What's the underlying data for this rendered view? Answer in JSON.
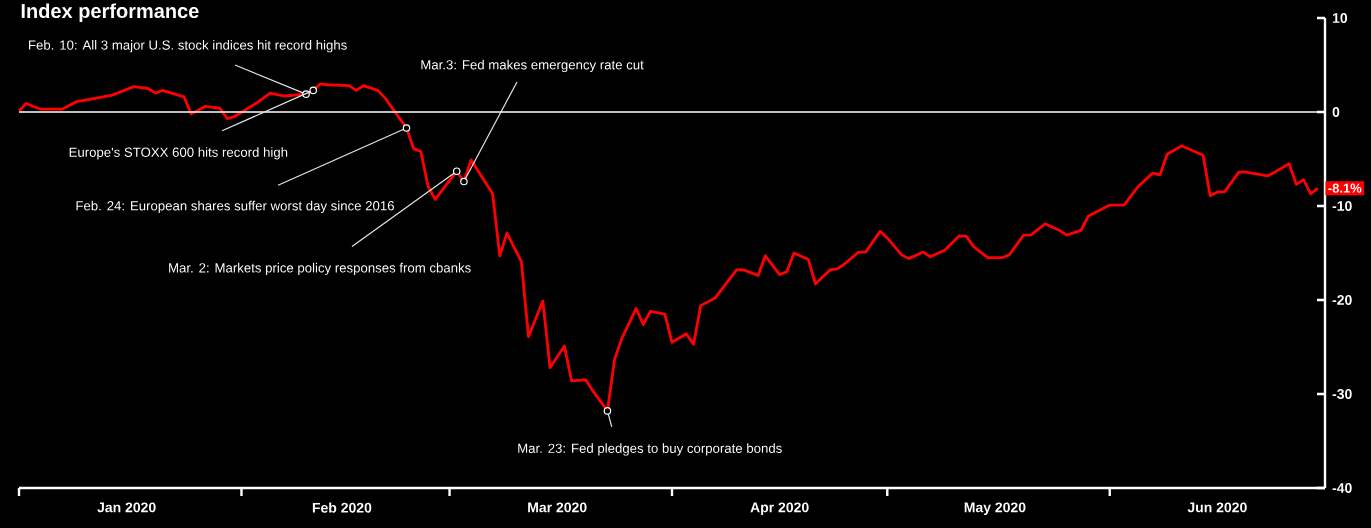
{
  "chart_data": {
    "type": "line",
    "title": "Index performance",
    "x": [
      "2020-01-01",
      "2020-01-02",
      "2020-01-04",
      "2020-01-07",
      "2020-01-09",
      "2020-01-12",
      "2020-01-14",
      "2020-01-17",
      "2020-01-19",
      "2020-01-20",
      "2020-01-21",
      "2020-01-24",
      "2020-01-25",
      "2020-01-27",
      "2020-01-29",
      "2020-01-30",
      "2020-01-31",
      "2020-02-03",
      "2020-02-05",
      "2020-02-07",
      "2020-02-10",
      "2020-02-11",
      "2020-02-12",
      "2020-02-13",
      "2020-02-16",
      "2020-02-17",
      "2020-02-18",
      "2020-02-20",
      "2020-02-21",
      "2020-02-24",
      "2020-02-25",
      "2020-02-26",
      "2020-02-27",
      "2020-02-28",
      "2020-03-02",
      "2020-03-03",
      "2020-03-04",
      "2020-03-07",
      "2020-03-08",
      "2020-03-09",
      "2020-03-11",
      "2020-03-12",
      "2020-03-14",
      "2020-03-15",
      "2020-03-17",
      "2020-03-18",
      "2020-03-20",
      "2020-03-21",
      "2020-03-23",
      "2020-03-24",
      "2020-03-25",
      "2020-03-27",
      "2020-03-28",
      "2020-03-29",
      "2020-03-31",
      "2020-04-01",
      "2020-04-03",
      "2020-04-04",
      "2020-04-05",
      "2020-04-07",
      "2020-04-10",
      "2020-04-11",
      "2020-04-13",
      "2020-04-14",
      "2020-04-16",
      "2020-04-17",
      "2020-04-18",
      "2020-04-20",
      "2020-04-21",
      "2020-04-23",
      "2020-04-24",
      "2020-04-25",
      "2020-04-27",
      "2020-04-28",
      "2020-04-30",
      "2020-05-01",
      "2020-05-03",
      "2020-05-04",
      "2020-05-06",
      "2020-05-07",
      "2020-05-09",
      "2020-05-11",
      "2020-05-12",
      "2020-05-13",
      "2020-05-15",
      "2020-05-17",
      "2020-05-18",
      "2020-05-20",
      "2020-05-21",
      "2020-05-23",
      "2020-05-25",
      "2020-05-26",
      "2020-05-28",
      "2020-05-29",
      "2020-05-31",
      "2020-06-01",
      "2020-06-03",
      "2020-06-04",
      "2020-06-05",
      "2020-06-07",
      "2020-06-08",
      "2020-06-09",
      "2020-06-11",
      "2020-06-14",
      "2020-06-15",
      "2020-06-16",
      "2020-06-17",
      "2020-06-19",
      "2020-06-20",
      "2020-06-23",
      "2020-06-24",
      "2020-06-26",
      "2020-06-27",
      "2020-06-28",
      "2020-06-29",
      "2020-06-30"
    ],
    "series": [
      {
        "color": "#ff0000",
        "values": [
          0.1,
          0.9,
          0.3,
          0.3,
          1.1,
          1.5,
          1.8,
          2.7,
          2.5,
          2.0,
          2.3,
          1.6,
          -0.2,
          0.6,
          0.4,
          -0.7,
          -0.5,
          0.9,
          2.0,
          1.7,
          1.9,
          2.3,
          3.0,
          2.9,
          2.8,
          2.3,
          2.8,
          2.3,
          1.5,
          -1.7,
          -3.9,
          -4.2,
          -7.9,
          -9.3,
          -6.3,
          -7.4,
          -5.1,
          -8.7,
          -15.3,
          -12.9,
          -15.9,
          -23.9,
          -20.1,
          -27.2,
          -24.9,
          -28.6,
          -28.5,
          -29.7,
          -31.8,
          -26.3,
          -24.1,
          -20.9,
          -22.6,
          -21.2,
          -21.5,
          -24.5,
          -23.6,
          -24.7,
          -20.6,
          -19.8,
          -16.8,
          -16.8,
          -17.4,
          -15.3,
          -17.3,
          -17.0,
          -15.0,
          -15.7,
          -18.3,
          -16.8,
          -16.7,
          -16.2,
          -14.9,
          -14.9,
          -12.7,
          -13.4,
          -15.2,
          -15.6,
          -14.9,
          -15.4,
          -14.7,
          -13.2,
          -13.2,
          -14.3,
          -15.5,
          -15.5,
          -15.2,
          -13.1,
          -13.1,
          -11.9,
          -12.6,
          -13.1,
          -12.6,
          -11.1,
          -10.3,
          -9.9,
          -9.9,
          -8.9,
          -7.9,
          -6.5,
          -6.7,
          -4.5,
          -3.6,
          -4.6,
          -8.9,
          -8.5,
          -8.5,
          -6.4,
          -6.4,
          -6.8,
          -6.4,
          -5.5,
          -7.7,
          -7.2,
          -8.7,
          -8.1
        ],
        "value_labels": [
          null,
          null,
          null,
          null,
          null,
          null,
          null,
          null,
          null,
          null,
          null,
          null,
          null,
          null,
          null,
          null,
          null,
          null,
          null,
          null,
          null,
          null,
          null,
          null,
          null,
          null,
          null,
          null,
          null,
          null,
          null,
          null,
          null,
          null,
          null,
          null,
          null,
          null,
          null,
          null,
          null,
          null,
          null,
          null,
          null,
          null,
          null,
          null,
          null,
          null,
          null,
          null,
          null,
          null,
          null,
          null,
          null,
          null,
          null,
          null,
          null,
          null,
          null,
          null,
          null,
          null,
          null,
          null,
          null,
          null,
          null,
          null,
          null,
          null,
          null,
          null,
          null,
          null,
          null,
          null,
          null,
          null,
          null,
          null,
          null,
          null,
          null,
          null,
          null,
          null,
          null,
          null,
          null,
          null,
          null,
          null,
          null,
          null,
          null,
          null,
          null,
          null,
          null,
          null,
          null,
          null,
          null,
          null,
          null,
          null,
          null,
          null,
          null,
          null,
          null,
          "-8.1%"
        ]
      }
    ],
    "xlim": [
      "2020-01-01",
      "2020-07-01"
    ],
    "xticks": [
      {
        "value": "2020-01-01",
        "label": null
      },
      {
        "value": "2020-01-16",
        "label": "Jan 2020"
      },
      {
        "value": "2020-02-01",
        "label": null
      },
      {
        "value": "2020-02-15",
        "label": "Feb 2020"
      },
      {
        "value": "2020-03-01",
        "label": null
      },
      {
        "value": "2020-03-16",
        "label": "Mar 2020"
      },
      {
        "value": "2020-04-01",
        "label": null
      },
      {
        "value": "2020-04-16",
        "label": "Apr 2020"
      },
      {
        "value": "2020-05-01",
        "label": null
      },
      {
        "value": "2020-05-16",
        "label": "May 2020"
      },
      {
        "value": "2020-06-01",
        "label": null
      },
      {
        "value": "2020-06-16",
        "label": "Jun 2020"
      }
    ],
    "ylim": [
      -40,
      10
    ],
    "yticks": [
      -40,
      -30,
      -20,
      -10,
      0,
      10
    ],
    "ref_lines": [
      {
        "axis": "y",
        "value": 0,
        "color": "#ffffff"
      }
    ],
    "line_style": "solid",
    "annotations": [
      {
        "text": "Feb. 10: All 3 major U.S. stock indices hit record highs",
        "x": "2020-02-10",
        "y": 1.9
      },
      {
        "text": "Europe's STOXX 600 hits record high",
        "x": "2020-02-11",
        "y": 2.3
      },
      {
        "text": "Feb. 24: European shares suffer worst day since 2016",
        "x": "2020-02-24",
        "y": -1.7
      },
      {
        "text": "Mar. 2: Markets price policy responses from cbanks",
        "x": "2020-03-02",
        "y": -6.3
      },
      {
        "text": "Mar.3: Fed makes emergency rate cut",
        "x": "2020-03-03",
        "y": -7.4
      },
      {
        "text": "Mar. 23: Fed pledges to buy corporate bonds",
        "x": "2020-03-23",
        "y": -31.8
      }
    ]
  }
}
